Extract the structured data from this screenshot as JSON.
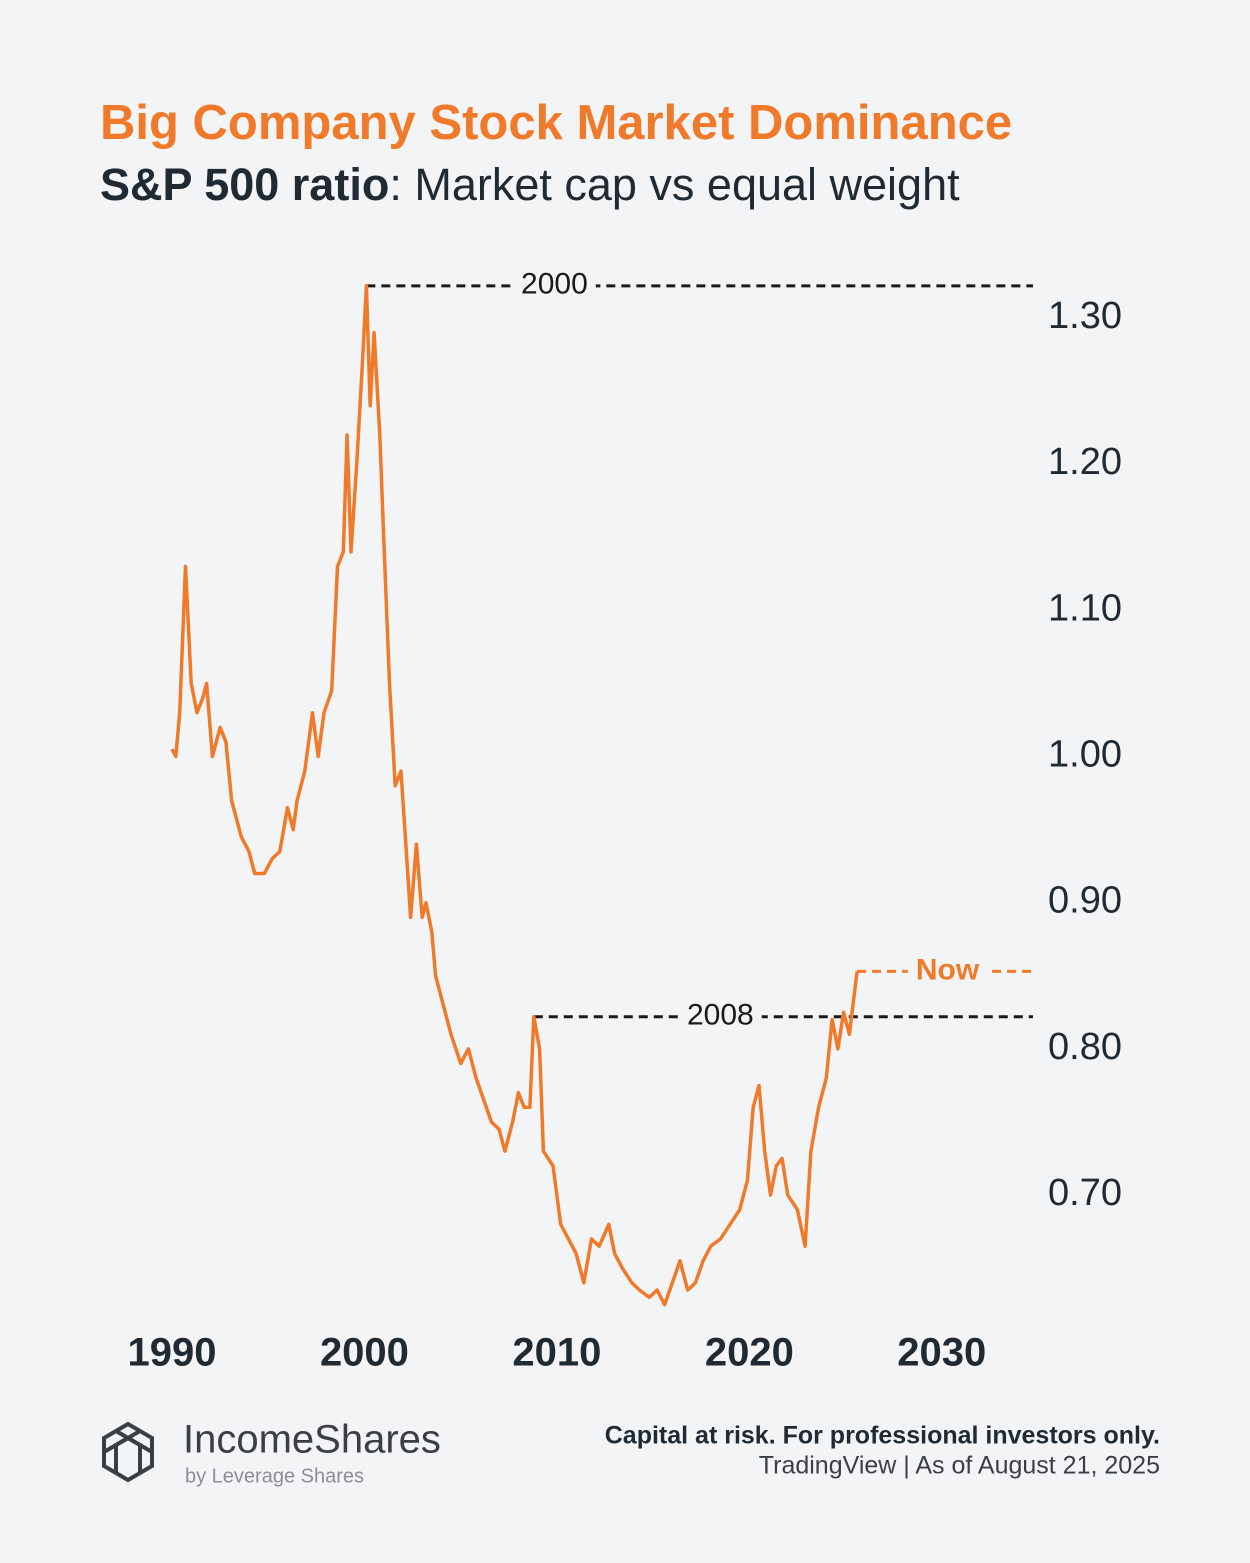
{
  "chart_data": {
    "type": "line",
    "title": "Big Company Stock Market Dominance",
    "subtitle_bold": "S&P 500 ratio",
    "subtitle": ": Market cap vs equal weight",
    "xlim": [
      1987,
      2035
    ],
    "xticks": [
      1990,
      2000,
      2010,
      2020,
      2030
    ],
    "ylim": [
      0.62,
      1.34
    ],
    "yticks": [
      {
        "value": 0.7,
        "label": "0.70"
      },
      {
        "value": 0.8,
        "label": "0.80"
      },
      {
        "value": 0.9,
        "label": "0.90"
      },
      {
        "value": 1.0,
        "label": "1.00"
      },
      {
        "value": 1.1,
        "label": "1.10"
      },
      {
        "value": 1.2,
        "label": "1.20"
      },
      {
        "value": 1.3,
        "label": "1.30"
      }
    ],
    "axis_side": "right",
    "grid": false,
    "series": [
      {
        "color": "#f07a2a",
        "x": [
          1990.0,
          1990.2,
          1990.4,
          1990.7,
          1991.0,
          1991.3,
          1991.6,
          1991.8,
          1992.1,
          1992.5,
          1992.8,
          1993.1,
          1993.6,
          1994.0,
          1994.3,
          1994.8,
          1995.2,
          1995.6,
          1996.0,
          1996.3,
          1996.5,
          1996.9,
          1997.3,
          1997.6,
          1997.9,
          1998.3,
          1998.6,
          1998.9,
          1999.1,
          1999.3,
          1999.6,
          1999.9,
          2000.1,
          2000.3,
          2000.5,
          2000.8,
          2001.0,
          2001.3,
          2001.6,
          2001.9,
          2002.2,
          2002.4,
          2002.7,
          2003.0,
          2003.2,
          2003.5,
          2003.7,
          2004.1,
          2004.5,
          2005.0,
          2005.4,
          2005.8,
          2006.2,
          2006.6,
          2007.0,
          2007.3,
          2007.7,
          2008.0,
          2008.3,
          2008.6,
          2008.8,
          2009.1,
          2009.3,
          2009.8,
          2010.2,
          2010.6,
          2011.0,
          2011.4,
          2011.8,
          2012.2,
          2012.7,
          2013.0,
          2013.4,
          2013.9,
          2014.3,
          2014.8,
          2015.2,
          2015.6,
          2016.0,
          2016.4,
          2016.8,
          2017.2,
          2017.6,
          2018.0,
          2018.5,
          2019.0,
          2019.5,
          2019.9,
          2020.2,
          2020.5,
          2020.8,
          2021.1,
          2021.4,
          2021.7,
          2022.0,
          2022.5,
          2022.9,
          2023.2,
          2023.6,
          2024.0,
          2024.3,
          2024.6,
          2024.9,
          2025.2,
          2025.6
        ],
        "values": [
          1.005,
          1.0,
          1.03,
          1.13,
          1.05,
          1.03,
          1.04,
          1.05,
          1.0,
          1.02,
          1.01,
          0.97,
          0.945,
          0.935,
          0.92,
          0.92,
          0.93,
          0.935,
          0.965,
          0.95,
          0.97,
          0.99,
          1.03,
          1.0,
          1.03,
          1.045,
          1.13,
          1.14,
          1.22,
          1.14,
          1.2,
          1.27,
          1.322,
          1.24,
          1.29,
          1.22,
          1.15,
          1.05,
          0.98,
          0.99,
          0.93,
          0.89,
          0.94,
          0.89,
          0.9,
          0.88,
          0.85,
          0.83,
          0.81,
          0.79,
          0.8,
          0.78,
          0.765,
          0.75,
          0.745,
          0.73,
          0.75,
          0.77,
          0.76,
          0.76,
          0.822,
          0.8,
          0.73,
          0.72,
          0.68,
          0.67,
          0.66,
          0.64,
          0.67,
          0.665,
          0.68,
          0.66,
          0.65,
          0.64,
          0.635,
          0.63,
          0.635,
          0.625,
          0.64,
          0.655,
          0.635,
          0.64,
          0.655,
          0.665,
          0.67,
          0.68,
          0.69,
          0.71,
          0.76,
          0.775,
          0.73,
          0.7,
          0.72,
          0.725,
          0.7,
          0.69,
          0.665,
          0.73,
          0.76,
          0.78,
          0.82,
          0.8,
          0.825,
          0.81,
          0.853
        ]
      }
    ],
    "annotations": [
      {
        "text": "2000",
        "x": 2000.1,
        "y": 1.322,
        "color": "#1a1a1a"
      },
      {
        "text": "2008",
        "x": 2008.8,
        "y": 0.822,
        "color": "#1a1a1a"
      },
      {
        "text": "Now",
        "x": 2025.6,
        "y": 0.853,
        "color": "#f07a2a"
      }
    ]
  },
  "footer": {
    "brand": "IncomeShares",
    "brand_sub": "by Leverage Shares",
    "disclaimer": "Capital at risk. For professional investors only.",
    "source": "TradingView | As of August 21, 2025"
  }
}
